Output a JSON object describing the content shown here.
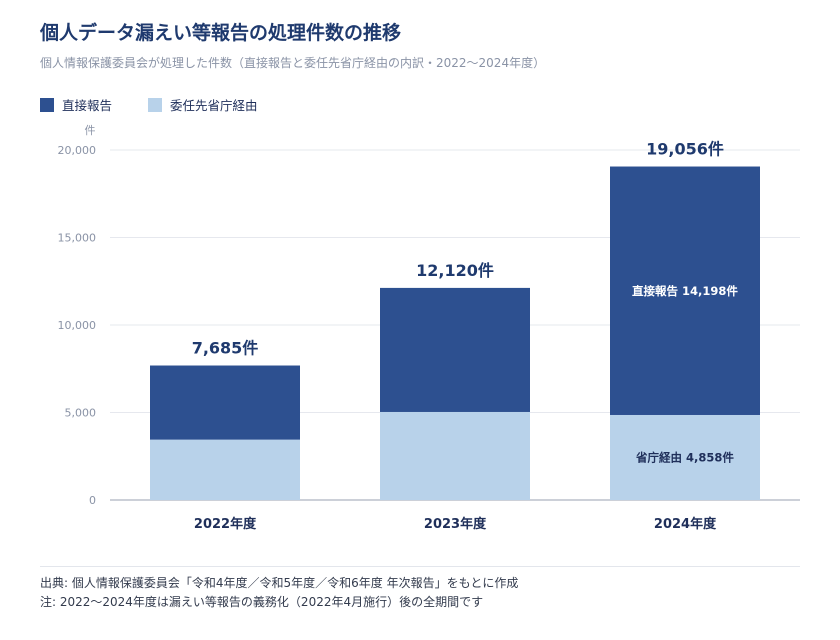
{
  "title": "個人データ漏えい等報告の処理件数の推移",
  "subtitle": "個人情報保護委員会が処理した件数（直接報告と委任先省庁経由の内訳・2022〜2024年度）",
  "legend": [
    {
      "label": "直接報告",
      "color": "#2d5090"
    },
    {
      "label": "委任先省庁経由",
      "color": "#b8d2ea"
    }
  ],
  "chart_data": {
    "type": "bar",
    "stacked": true,
    "categories": [
      "2022年度",
      "2023年度",
      "2024年度"
    ],
    "series": [
      {
        "name": "委任先省庁経由",
        "values": [
          3450,
          5030,
          4858
        ],
        "color": "#b8d2ea"
      },
      {
        "name": "直接報告",
        "values": [
          4235,
          7090,
          14198
        ],
        "color": "#2d5090"
      }
    ],
    "totals": [
      7685,
      12120,
      19056
    ],
    "total_labels": [
      "7,685件",
      "12,120件",
      "19,056件"
    ],
    "segment_labels": [
      {
        "category_index": 2,
        "series": "直接報告",
        "text": "直接報告 14,198件",
        "color": "#ffffff"
      },
      {
        "category_index": 2,
        "series": "委任先省庁経由",
        "text": "省庁経由 4,858件",
        "color": "#1f2f5a"
      }
    ],
    "ylabel": "件",
    "ylim": [
      0,
      20000
    ],
    "yticks": [
      0,
      5000,
      10000,
      15000,
      20000
    ],
    "ytick_labels": [
      "0",
      "5,000",
      "10,000",
      "15,000",
      "20,000"
    ],
    "grid": true
  },
  "footer": {
    "source": "出典: 個人情報保護委員会「令和4年度／令和5年度／令和6年度 年次報告」をもとに作成",
    "note": "注: 2022〜2024年度は漏えい等報告の義務化（2022年4月施行）後の全期間です"
  }
}
